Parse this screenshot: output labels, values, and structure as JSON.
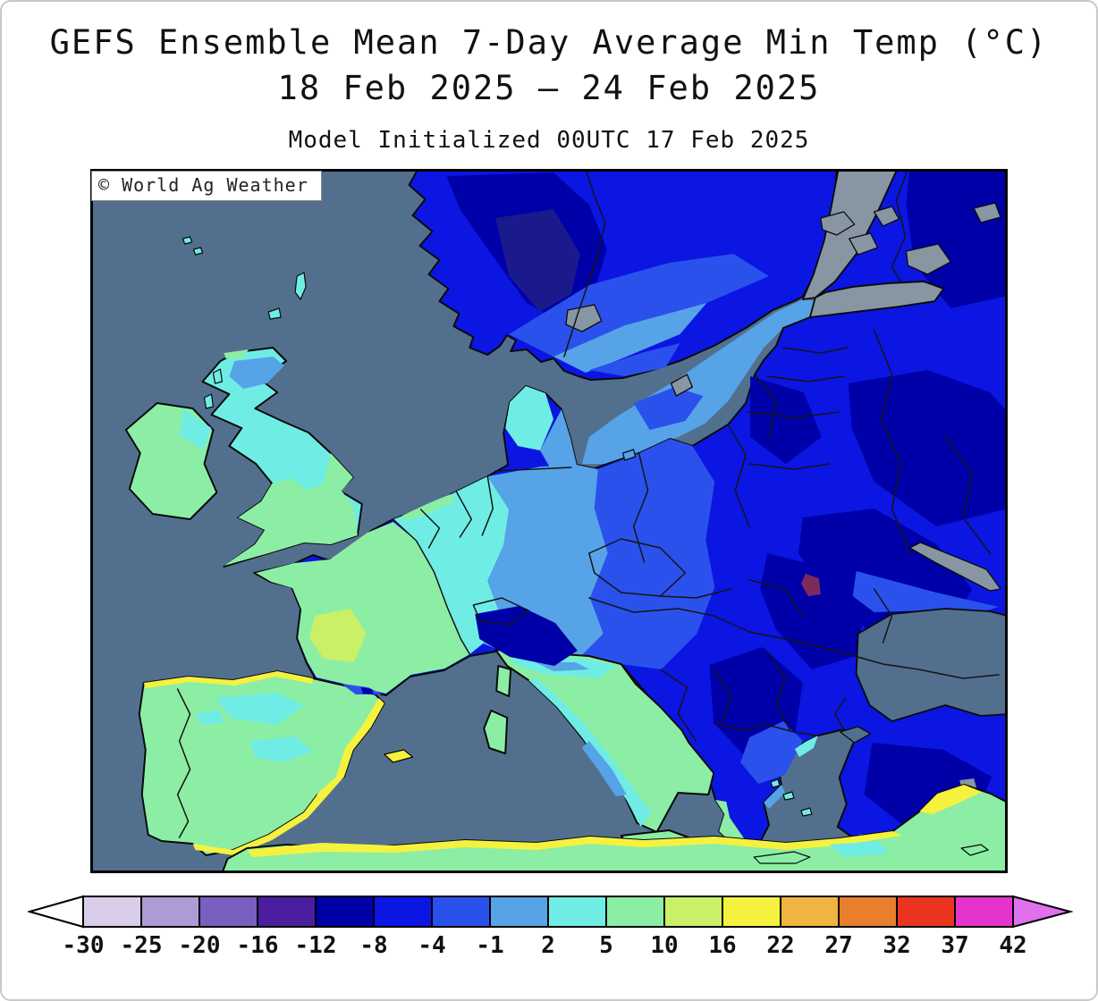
{
  "title": {
    "line1": "GEFS Ensemble Mean 7-Day Average Min Temp (°C)",
    "line2": "18 Feb 2025 – 24 Feb 2025",
    "line3": "Model Initialized 00UTC 17 Feb 2025"
  },
  "watermark": "© World Ag Weather",
  "palette": {
    "ocean": "#52708E",
    "nodata": "#8796A2",
    "navy_dark": "#1A1A8C",
    "m12_m8": "#0000A8",
    "m8_m4": "#0B16E3",
    "m4_m1": "#2B51EC",
    "m1_2": "#56A3E8",
    "p2_5": "#6FEDE4",
    "p5_10": "#8CEEA4",
    "p10_16": "#C9F066",
    "p16_22": "#F5F23F",
    "purple_patch": "#7D2B5B"
  },
  "chart_data": {
    "type": "heatmap",
    "title": "GEFS Ensemble Mean 7-Day Average Min Temp (°C)",
    "valid_period": "18 Feb 2025 – 24 Feb 2025",
    "model_initialized": "00UTC 17 Feb 2025",
    "units": "°C",
    "region": "Europe",
    "source_watermark": "© World Ag Weather",
    "colorbar": {
      "tick_labels": [
        "-30",
        "-25",
        "-20",
        "-16",
        "-12",
        "-8",
        "-4",
        "-1",
        "2",
        "5",
        "10",
        "16",
        "22",
        "27",
        "32",
        "37",
        "42"
      ],
      "cell_colors": [
        "#D9CDE9",
        "#AC9BD5",
        "#7B5FC0",
        "#4A1E9E",
        "#0000A8",
        "#0B16E3",
        "#2B51EC",
        "#56A3E8",
        "#6FEDE4",
        "#8CEEA4",
        "#C9F066",
        "#F5F23F",
        "#EFB441",
        "#E97E2C",
        "#EA3420",
        "#E534CC"
      ],
      "left_arrow_color": "#FDFDFD",
      "right_arrow_color": "#DF70EE",
      "outline_color": "#000000"
    },
    "regional_values": [
      {
        "region": "Ireland",
        "avg_min_temp_c": "5 to 10"
      },
      {
        "region": "United Kingdom",
        "avg_min_temp_c": "2 to 5; south/east 5 to 10; Scottish Highlands -1 to 2"
      },
      {
        "region": "Norway interior",
        "avg_min_temp_c": "-12 to -8"
      },
      {
        "region": "Sweden",
        "avg_min_temp_c": "-8 to -1 (south milder)"
      },
      {
        "region": "Finland",
        "avg_min_temp_c": "-12 to -4"
      },
      {
        "region": "Western Russia / Baltics",
        "avg_min_temp_c": "-12 to -4"
      },
      {
        "region": "Germany / Poland",
        "avg_min_temp_c": "-4 to 2"
      },
      {
        "region": "France",
        "avg_min_temp_c": "2 to 10 (east cooler)"
      },
      {
        "region": "Spain / Portugal",
        "avg_min_temp_c": "5 to 10; coasts 10 to 16"
      },
      {
        "region": "Italy",
        "avg_min_temp_c": "2 to 10; Alps -12 to -8"
      },
      {
        "region": "Balkans / Romania / Carpathians",
        "avg_min_temp_c": "-12 to -4"
      },
      {
        "region": "Greece",
        "avg_min_temp_c": "-4 to 5; coasts 5 to 10"
      },
      {
        "region": "Turkey (Anatolia)",
        "avg_min_temp_c": "-12 to -8; south coast 2 to 10"
      },
      {
        "region": "North Africa coast",
        "avg_min_temp_c": "5 to 16"
      }
    ]
  }
}
